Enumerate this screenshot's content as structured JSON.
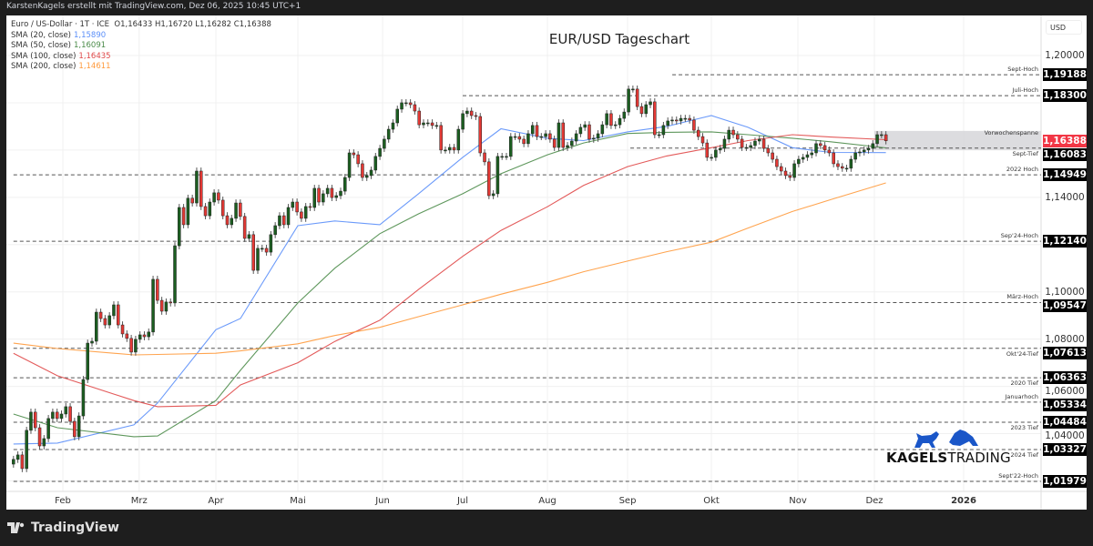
{
  "header": {
    "credit": "KarstenKagels erstellt mit TradingView.com, Dez 06, 2025 10:45 UTC+1"
  },
  "legend": {
    "symbol": "Euro / US-Dollar · 1T · ICE",
    "ohlc": "O1,16433  H1,16720  L1,16282  C1,16388",
    "indicators": [
      {
        "label": "SMA (20, close)",
        "value": "1,15890",
        "color": "#5b8ff9"
      },
      {
        "label": "SMA (50, close)",
        "value": "1,16091",
        "color": "#4c8c4a"
      },
      {
        "label": "SMA (100, close)",
        "value": "1,16435",
        "color": "#e04848"
      },
      {
        "label": "SMA (200, close)",
        "value": "1,14611",
        "color": "#ff9a3c"
      }
    ]
  },
  "price_axis": {
    "currency": "USD",
    "current": "1,16388",
    "current_color": "#f23645"
  },
  "footer": {
    "brand": "TradingView"
  },
  "watermark": {
    "brand_bold": "KAGELS",
    "brand_light": "TRADING",
    "color": "#1a56c8"
  },
  "chart_data": {
    "type": "candlestick",
    "title": "EUR/USD Tageschart",
    "ylim": [
      1.0105,
      1.2095
    ],
    "y_ticks": [
      {
        "value": 1.2,
        "label": "1,20000"
      },
      {
        "value": 1.14,
        "label": "1,14000"
      },
      {
        "value": 1.1,
        "label": "1,10000"
      },
      {
        "value": 1.08,
        "label": "1,08000"
      },
      {
        "value": 1.06,
        "label": "1,06000"
      },
      {
        "value": 1.04,
        "label": "1,04000"
      }
    ],
    "x_ticks": [
      {
        "date": "2025-02-03",
        "label": "Feb"
      },
      {
        "date": "2025-03-03",
        "label": "Mrz"
      },
      {
        "date": "2025-04-01",
        "label": "Apr"
      },
      {
        "date": "2025-05-01",
        "label": "Mai"
      },
      {
        "date": "2025-06-02",
        "label": "Jun"
      },
      {
        "date": "2025-07-01",
        "label": "Jul"
      },
      {
        "date": "2025-08-01",
        "label": "Aug"
      },
      {
        "date": "2025-09-01",
        "label": "Sep"
      },
      {
        "date": "2025-10-01",
        "label": "Okt"
      },
      {
        "date": "2025-11-03",
        "label": "Nov"
      },
      {
        "date": "2025-12-01",
        "label": "Dez"
      },
      {
        "date": "2026-01-01",
        "label": "2026",
        "bold": true
      }
    ],
    "first_date": "2025-01-14",
    "last_date": "2025-12-05",
    "closes": [
      1.0291,
      1.031,
      1.0252,
      1.0414,
      1.0491,
      1.0425,
      1.0348,
      1.0379,
      1.0464,
      1.0491,
      1.0464,
      1.0483,
      1.0514,
      1.0452,
      1.0387,
      1.0475,
      1.0629,
      1.0783,
      1.0791,
      1.0914,
      1.0887,
      1.086,
      1.0899,
      1.0945,
      1.086,
      1.0822,
      1.0803,
      1.0745,
      1.0799,
      1.0818,
      1.081,
      1.083,
      1.1053,
      1.0964,
      1.0918,
      1.0957,
      1.0953,
      1.1195,
      1.1357,
      1.1284,
      1.1396,
      1.1376,
      1.1511,
      1.1361,
      1.1322,
      1.138,
      1.1419,
      1.1388,
      1.1322,
      1.1284,
      1.1311,
      1.1376,
      1.1319,
      1.1226,
      1.1242,
      1.1091,
      1.1184,
      1.1184,
      1.1168,
      1.1242,
      1.128,
      1.1322,
      1.1284,
      1.1357,
      1.138,
      1.1338,
      1.1311,
      1.1361,
      1.1357,
      1.1438,
      1.138,
      1.1415,
      1.1438,
      1.1399,
      1.1407,
      1.1426,
      1.1484,
      1.1588,
      1.158,
      1.1542,
      1.1484,
      1.1492,
      1.1515,
      1.1573,
      1.1607,
      1.1646,
      1.1688,
      1.1715,
      1.1773,
      1.18,
      1.18,
      1.1792,
      1.1765,
      1.1707,
      1.1715,
      1.1715,
      1.1704,
      1.1704,
      1.16,
      1.16,
      1.1611,
      1.16,
      1.1688,
      1.1754,
      1.1765,
      1.1746,
      1.1742,
      1.1588,
      1.155,
      1.1407,
      1.1415,
      1.1573,
      1.1573,
      1.1573,
      1.1657,
      1.1657,
      1.1646,
      1.1627,
      1.1669,
      1.1704,
      1.1657,
      1.1657,
      1.1669,
      1.1646,
      1.1611,
      1.1715,
      1.1611,
      1.1619,
      1.1638,
      1.1669,
      1.1696,
      1.1707,
      1.1646,
      1.165,
      1.1669,
      1.1707,
      1.1754,
      1.1704,
      1.1707,
      1.1734,
      1.1761,
      1.1858,
      1.1858,
      1.1784,
      1.1754,
      1.1792,
      1.1804,
      1.1665,
      1.1665,
      1.1704,
      1.1723,
      1.1727,
      1.1723,
      1.1734,
      1.1734,
      1.1727,
      1.1684,
      1.1657,
      1.163,
      1.1569,
      1.1569,
      1.16,
      1.1607,
      1.1646,
      1.1684,
      1.1665,
      1.1646,
      1.1611,
      1.1611,
      1.1619,
      1.1638,
      1.1646,
      1.1607,
      1.1588,
      1.1561,
      1.153,
      1.1511,
      1.1492,
      1.1484,
      1.1542,
      1.1561,
      1.1569,
      1.158,
      1.1588,
      1.1627,
      1.1619,
      1.16,
      1.1588,
      1.1542,
      1.153,
      1.1523,
      1.1523,
      1.1561,
      1.1588,
      1.1592,
      1.16,
      1.1607,
      1.1627,
      1.1665,
      1.1665,
      1.1639
    ],
    "sma_dates": [
      "2025-01-14",
      "2025-02-01",
      "2025-03-01",
      "2025-03-10",
      "2025-04-01",
      "2025-04-10",
      "2025-05-01",
      "2025-05-15",
      "2025-06-01",
      "2025-06-15",
      "2025-07-01",
      "2025-07-15",
      "2025-08-01",
      "2025-08-15",
      "2025-09-01",
      "2025-09-15",
      "2025-10-01",
      "2025-10-15",
      "2025-11-01",
      "2025-11-15",
      "2025-12-05"
    ],
    "series": [
      {
        "name": "SMA (20, close)",
        "color": "#5b8ff9",
        "values": [
          1.0356,
          1.036,
          1.0437,
          1.053,
          1.084,
          1.0887,
          1.128,
          1.13,
          1.1284,
          1.1415,
          1.1569,
          1.169,
          1.165,
          1.164,
          1.1677,
          1.17,
          1.1746,
          1.1696,
          1.161,
          1.159,
          1.1589
        ]
      },
      {
        "name": "SMA (50, close)",
        "color": "#4c8c4a",
        "values": [
          1.0483,
          1.0425,
          1.0387,
          1.039,
          1.054,
          1.0668,
          1.0953,
          1.11,
          1.1246,
          1.133,
          1.1415,
          1.15,
          1.158,
          1.163,
          1.167,
          1.1675,
          1.1677,
          1.1665,
          1.165,
          1.1635,
          1.1609
        ]
      },
      {
        "name": "SMA (100, close)",
        "color": "#e04848",
        "values": [
          1.074,
          1.0645,
          1.054,
          1.0514,
          1.052,
          1.0606,
          1.07,
          1.079,
          1.088,
          1.101,
          1.115,
          1.126,
          1.136,
          1.145,
          1.153,
          1.1575,
          1.161,
          1.164,
          1.1665,
          1.1655,
          1.1644
        ]
      },
      {
        "name": "SMA (200, close)",
        "color": "#ff9a3c",
        "values": [
          1.0783,
          1.076,
          1.0733,
          1.0735,
          1.074,
          1.075,
          1.078,
          1.0815,
          1.085,
          1.0895,
          1.0945,
          1.099,
          1.104,
          1.1085,
          1.113,
          1.117,
          1.121,
          1.127,
          1.134,
          1.139,
          1.1461
        ]
      }
    ],
    "levels": [
      {
        "name": "Sept-Hoch",
        "value": 1.19188,
        "label": "1,19188",
        "start": "2025-09-17"
      },
      {
        "name": "Juli-Hoch",
        "value": 1.183,
        "label": "1,18300",
        "start": "2025-07-01"
      },
      {
        "name": "Sept-Tief",
        "value": 1.16083,
        "label": "1,16083",
        "start": "2025-09-02"
      },
      {
        "name": "2022 Hoch",
        "value": 1.14949,
        "label": "1,14949",
        "start": "2025-01-14"
      },
      {
        "name": "Sep'24-Hoch",
        "value": 1.1214,
        "label": "1,12140",
        "start": "2025-01-14"
      },
      {
        "name": "März-Hoch",
        "value": 1.09547,
        "label": "1,09547",
        "start": "2025-03-18"
      },
      {
        "name": "Okt'24-Tief",
        "value": 1.07613,
        "label": "1,07613",
        "start": "2025-01-14"
      },
      {
        "name": "2020 Tief",
        "value": 1.06363,
        "label": "1,06363",
        "start": "2025-01-14"
      },
      {
        "name": "Januarhoch",
        "value": 1.05334,
        "label": "1,05334",
        "start": "2025-01-27"
      },
      {
        "name": "2023 Tief",
        "value": 1.04484,
        "label": "1,04484",
        "start": "2025-01-14"
      },
      {
        "name": "2024 Tief",
        "value": 1.03327,
        "label": "1,03327",
        "start": "2025-01-14"
      },
      {
        "name": "Sept'22-Hoch",
        "value": 1.01979,
        "label": "1,01979",
        "start": "2025-01-14"
      }
    ],
    "range_box": {
      "name": "Vorwochenspanne",
      "low": 1.16,
      "high": 1.1681,
      "start": "2025-12-01"
    },
    "up_color": "#1b5e20",
    "down_color": "#e53935",
    "grid": true
  }
}
